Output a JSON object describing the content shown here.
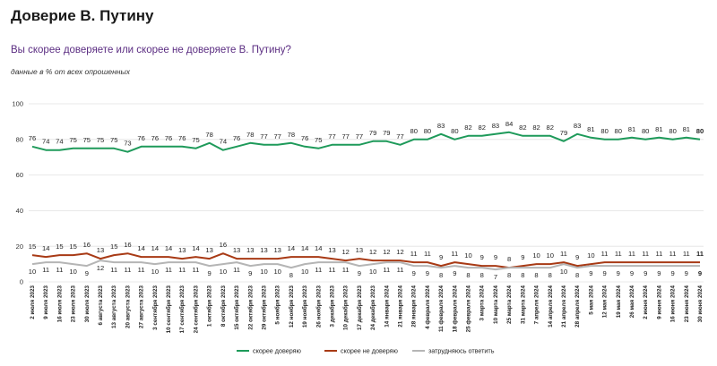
{
  "title": "Доверие В. Путину",
  "subtitle": "Вы скорее доверяете или скорее не доверяете В. Путину?",
  "note": "данные в % от всех опрошенных",
  "colors": {
    "trust": "#1e9a5a",
    "distrust": "#a83a15",
    "unsure": "#b5b5b5",
    "grid": "#e2e2e2"
  },
  "chart_data": {
    "type": "line",
    "ylim": [
      0,
      100
    ],
    "yticks": [
      0,
      20,
      40,
      60,
      80,
      100
    ],
    "legend_position": "bottom",
    "grid": true,
    "x": [
      "2 июля 2023",
      "9 июля 2023",
      "16 июля 2023",
      "23 июля 2023",
      "30 июля 2023",
      "6 августа 2023",
      "13 августа 2023",
      "20 августа 2023",
      "27 августа 2023",
      "3 сентября 2023",
      "10 сентября 2023",
      "17 сентября 2023",
      "24 сентября 2023",
      "1 октября 2023",
      "8 октября 2023",
      "15 октября 2023",
      "22 октября 2023",
      "29 октября 2023",
      "5 ноября 2023",
      "12 ноября 2023",
      "19 ноября 2023",
      "26 ноября 2023",
      "3 декабря 2023",
      "10 декабря 2023",
      "17 декабря 2023",
      "24 декабря 2023",
      "14 января 2024",
      "21 января 2024",
      "28 января 2024",
      "4 февраля 2024",
      "11 февраля 2024",
      "18 февраля 2024",
      "25 февраля 2024",
      "3 марта 2024",
      "10 марта 2024",
      "25 марта 2024",
      "31 марта 2024",
      "7 апреля 2024",
      "14 апреля 2024",
      "21 апреля 2024",
      "28 апреля 2024",
      "5 мая 2024",
      "12 мая 2024",
      "19 мая 2024",
      "26 мая 2024",
      "2 июня 2024",
      "9 июня 2024",
      "16 июня 2024",
      "23 июня 2024",
      "30 июня 2024"
    ],
    "series": [
      {
        "name": "скорее доверяю",
        "color": "#1e9a5a",
        "values": [
          76,
          74,
          74,
          75,
          75,
          75,
          75,
          73,
          76,
          76,
          76,
          76,
          75,
          78,
          74,
          76,
          78,
          77,
          77,
          78,
          76,
          75,
          77,
          77,
          77,
          79,
          79,
          77,
          80,
          80,
          83,
          80,
          82,
          82,
          83,
          84,
          82,
          82,
          82,
          79,
          83,
          81,
          80,
          80,
          81,
          80,
          81,
          80,
          81,
          80
        ]
      },
      {
        "name": "скорее не доверяю",
        "color": "#a83a15",
        "values": [
          15,
          14,
          15,
          15,
          16,
          13,
          15,
          16,
          14,
          14,
          14,
          13,
          14,
          13,
          16,
          13,
          13,
          13,
          13,
          14,
          14,
          14,
          13,
          12,
          13,
          12,
          12,
          12,
          11,
          11,
          9,
          11,
          10,
          9,
          9,
          8,
          9,
          10,
          10,
          11,
          9,
          10,
          11,
          11,
          11,
          11,
          11,
          11,
          11,
          11
        ]
      },
      {
        "name": "затрудняюсь ответить",
        "color": "#b5b5b5",
        "values": [
          10,
          11,
          11,
          10,
          9,
          12,
          11,
          11,
          11,
          10,
          11,
          11,
          11,
          9,
          10,
          11,
          9,
          10,
          10,
          8,
          10,
          11,
          11,
          11,
          9,
          10,
          11,
          11,
          9,
          9,
          8,
          9,
          8,
          8,
          7,
          8,
          8,
          8,
          8,
          10,
          8,
          9,
          9,
          9,
          9,
          9,
          9,
          9,
          9,
          9
        ]
      }
    ]
  }
}
